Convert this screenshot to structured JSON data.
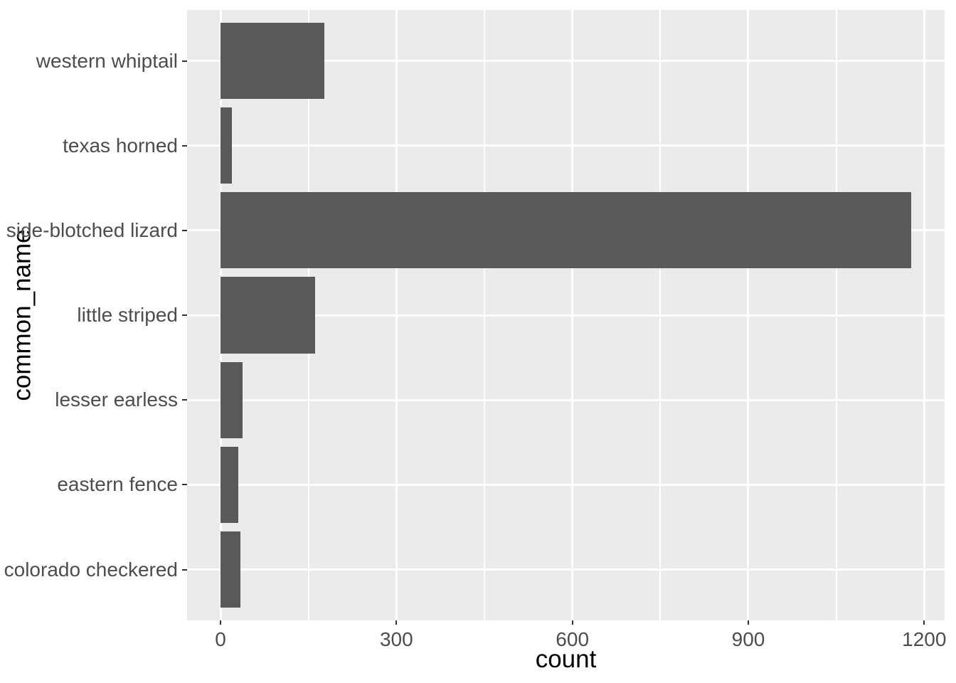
{
  "chart_data": {
    "type": "bar",
    "orientation": "horizontal",
    "title": "",
    "xlabel": "count",
    "ylabel": "common_name",
    "categories": [
      "western whiptail",
      "texas horned",
      "side-blotched lizard",
      "little striped",
      "lesser earless",
      "eastern fence",
      "colorado checkered"
    ],
    "values": [
      177,
      20,
      1178,
      161,
      38,
      30,
      34
    ],
    "x_ticks": [
      0,
      300,
      600,
      900,
      1200
    ],
    "x_minor_gridlines": [
      150,
      450,
      750,
      1050
    ],
    "xlim": [
      -59,
      1236
    ],
    "bar_width_fraction": 0.9,
    "grid": true,
    "legend_position": "none",
    "theme": {
      "bar_color": "#595959",
      "panel_background": "#EBEBEB",
      "gridline_color": "#FFFFFF",
      "tick_label_color": "#4D4D4D",
      "axis_title_color": "#000000",
      "tick_mark_color": "#333333",
      "figure_background": "#FFFFFF"
    }
  }
}
